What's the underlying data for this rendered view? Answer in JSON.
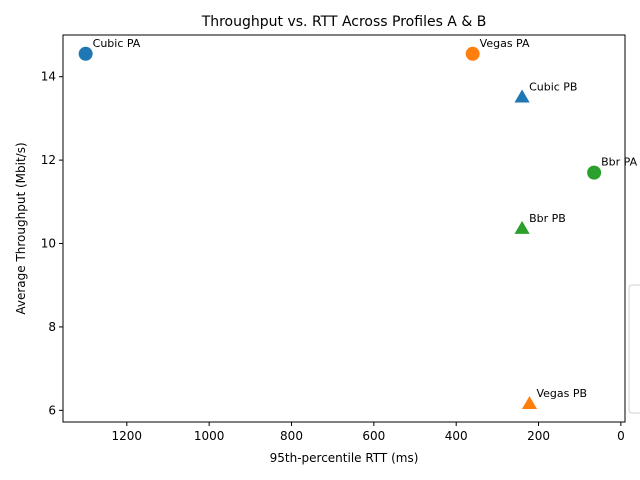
{
  "chart_data": {
    "type": "scatter",
    "title": "Throughput vs. RTT Across Profiles A & B",
    "xlabel": "95th-percentile RTT (ms)",
    "ylabel": "Average Throughput (Mbit/s)",
    "x_inverted": true,
    "xlim": [
      1355,
      -10
    ],
    "ylim": [
      5.72,
      15.0
    ],
    "x_ticks": [
      1200,
      1000,
      800,
      600,
      400,
      200,
      0
    ],
    "y_ticks": [
      6,
      8,
      10,
      12,
      14
    ],
    "grid": false,
    "legend_placement": "right, partially clipped, no visible entries",
    "colors": {
      "cubic": "#1f77b4",
      "vegas": "#ff7f0e",
      "bbr": "#2ca02c"
    },
    "points": [
      {
        "label": "Cubic PA",
        "x": 1300,
        "y": 14.55,
        "color": "#1f77b4",
        "marker": "circle"
      },
      {
        "label": "Vegas PA",
        "x": 360,
        "y": 14.55,
        "color": "#ff7f0e",
        "marker": "circle"
      },
      {
        "label": "Cubic PB",
        "x": 240,
        "y": 13.5,
        "color": "#1f77b4",
        "marker": "triangle"
      },
      {
        "label": "Bbr PA",
        "x": 65,
        "y": 11.7,
        "color": "#2ca02c",
        "marker": "circle"
      },
      {
        "label": "Bbr PB",
        "x": 240,
        "y": 10.35,
        "color": "#2ca02c",
        "marker": "triangle"
      },
      {
        "label": "Vegas PB",
        "x": 222,
        "y": 6.15,
        "color": "#ff7f0e",
        "marker": "triangle"
      }
    ]
  }
}
